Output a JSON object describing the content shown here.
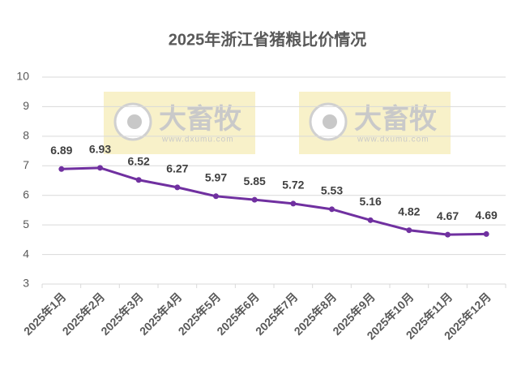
{
  "chart_data": {
    "type": "line",
    "title": "2025年浙江省猪粮比价情况",
    "categories": [
      "2025年1月",
      "2025年2月",
      "2025年3月",
      "2025年4月",
      "2025年5月",
      "2025年6月",
      "2025年7月",
      "2025年8月",
      "2025年9月",
      "2025年10月",
      "2025年11月",
      "2025年12月"
    ],
    "series": [
      {
        "name": "猪粮比价",
        "color": "#7030a0",
        "values": [
          6.89,
          6.93,
          6.52,
          6.27,
          5.97,
          5.85,
          5.72,
          5.53,
          5.16,
          4.82,
          4.67,
          4.69
        ]
      }
    ],
    "ylim": [
      3,
      10
    ],
    "yticks": [
      3,
      4,
      5,
      6,
      7,
      8,
      9,
      10
    ],
    "grid": true,
    "watermarks": [
      {
        "brand": "大畜牧",
        "url": "www.dxumu.com"
      },
      {
        "brand": "大畜牧",
        "url": "www.dxumu.com"
      }
    ]
  }
}
